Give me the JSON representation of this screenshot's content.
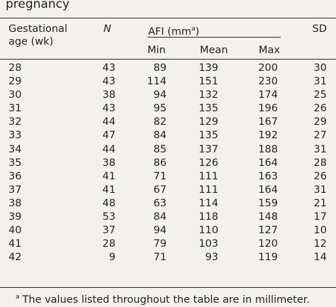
{
  "caption": "pregnancy",
  "headers": {
    "ga_line1": "Gestational",
    "ga_line2": "age (wk)",
    "n": "N",
    "afi_pre": "AFI (mm",
    "afi_sup": "a",
    "afi_post": ")",
    "min": "Min",
    "mean": "Mean",
    "max": "Max",
    "sd": "SD"
  },
  "rows": [
    {
      "ga": "28",
      "n": "43",
      "min": "89",
      "mean": "139",
      "max": "200",
      "sd": "30"
    },
    {
      "ga": "29",
      "n": "43",
      "min": "114",
      "mean": "151",
      "max": "230",
      "sd": "31"
    },
    {
      "ga": "30",
      "n": "38",
      "min": "94",
      "mean": "132",
      "max": "174",
      "sd": "25"
    },
    {
      "ga": "31",
      "n": "43",
      "min": "95",
      "mean": "135",
      "max": "196",
      "sd": "26"
    },
    {
      "ga": "32",
      "n": "44",
      "min": "82",
      "mean": "129",
      "max": "167",
      "sd": "29"
    },
    {
      "ga": "33",
      "n": "47",
      "min": "84",
      "mean": "135",
      "max": "192",
      "sd": "27"
    },
    {
      "ga": "34",
      "n": "44",
      "min": "85",
      "mean": "137",
      "max": "188",
      "sd": "31"
    },
    {
      "ga": "35",
      "n": "38",
      "min": "86",
      "mean": "126",
      "max": "164",
      "sd": "28"
    },
    {
      "ga": "36",
      "n": "41",
      "min": "71",
      "mean": "111",
      "max": "163",
      "sd": "26"
    },
    {
      "ga": "37",
      "n": "41",
      "min": "67",
      "mean": "111",
      "max": "164",
      "sd": "31"
    },
    {
      "ga": "38",
      "n": "48",
      "min": "63",
      "mean": "114",
      "max": "159",
      "sd": "21"
    },
    {
      "ga": "39",
      "n": "53",
      "min": "84",
      "mean": "118",
      "max": "148",
      "sd": "17"
    },
    {
      "ga": "40",
      "n": "37",
      "min": "94",
      "mean": "110",
      "max": "127",
      "sd": "10"
    },
    {
      "ga": "41",
      "n": "28",
      "min": "79",
      "mean": "103",
      "max": "120",
      "sd": "12"
    },
    {
      "ga": "42",
      "n": "9",
      "min": "71",
      "mean": "93",
      "max": "119",
      "sd": "14"
    }
  ],
  "footnote": {
    "mark": "a",
    "text": "The values listed throughout the table are in millimeter."
  }
}
